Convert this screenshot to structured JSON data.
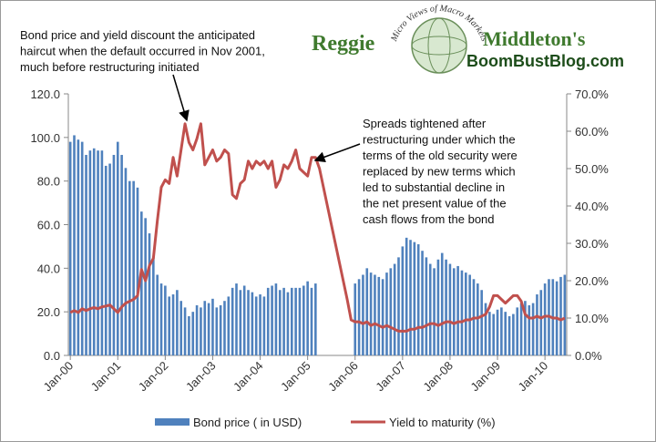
{
  "logo": {
    "left": "Reggie",
    "arc": "Micro Views of Macro Markets",
    "right": "Middleton's",
    "site": "BoomBustBlog.com"
  },
  "chart_data": {
    "type": "bar",
    "annotations": [
      [
        "Bond price and yield discount the anticipated",
        "haircut  when the default occurred in Nov 2001,",
        "much before restructuring initiated"
      ],
      [
        "Spreads tightened after",
        "restructuring  under which the",
        "terms of the old security were",
        "replaced by new terms which",
        "led to substantial decline in",
        "the net present value of the",
        "cash flows from the bond"
      ]
    ],
    "categories": [
      "Jan-00",
      null,
      null,
      null,
      null,
      null,
      null,
      null,
      null,
      null,
      null,
      null,
      "Jan-01",
      null,
      null,
      null,
      null,
      null,
      null,
      null,
      null,
      null,
      null,
      null,
      "Jan-02",
      null,
      null,
      null,
      null,
      null,
      null,
      null,
      null,
      null,
      null,
      null,
      "Jan-03",
      null,
      null,
      null,
      null,
      null,
      null,
      null,
      null,
      null,
      null,
      null,
      "Jan-04",
      null,
      null,
      null,
      null,
      null,
      null,
      null,
      null,
      null,
      null,
      null,
      "Jan-05",
      null,
      null,
      null,
      null,
      null,
      null,
      null,
      null,
      null,
      null,
      null,
      "Jan-06",
      null,
      null,
      null,
      null,
      null,
      null,
      null,
      null,
      null,
      null,
      null,
      "Jan-07",
      null,
      null,
      null,
      null,
      null,
      null,
      null,
      null,
      null,
      null,
      null,
      "Jan-08",
      null,
      null,
      null,
      null,
      null,
      null,
      null,
      null,
      null,
      null,
      null,
      "Jan-09",
      null,
      null,
      null,
      null,
      null,
      null,
      null,
      null,
      null,
      null,
      null,
      "Jan-10",
      null,
      null,
      null,
      null,
      null
    ],
    "series": [
      {
        "name": "Bond price ( in USD)",
        "type": "bar",
        "color": "#4f81bd",
        "values": [
          98,
          101,
          99,
          98,
          92,
          94,
          95,
          94,
          94,
          87,
          88,
          92,
          98,
          92,
          86,
          80,
          80,
          77,
          66,
          63,
          56,
          45,
          37,
          33,
          32,
          27,
          28,
          30,
          25,
          22,
          18,
          20,
          23,
          22,
          25,
          24,
          26,
          22,
          23,
          25,
          27,
          31,
          33,
          30,
          32,
          30,
          29,
          27,
          28,
          27,
          31,
          32,
          33,
          30,
          31,
          29,
          31,
          31,
          31,
          32,
          34,
          31,
          33,
          null,
          null,
          null,
          null,
          null,
          null,
          null,
          null,
          null,
          33,
          35,
          37,
          40,
          38,
          37,
          36,
          35,
          38,
          40,
          42,
          45,
          50,
          54,
          53,
          52,
          51,
          48,
          45,
          42,
          40,
          44,
          47,
          44,
          42,
          40,
          41,
          39,
          38,
          37,
          35,
          33,
          30,
          24,
          20,
          19,
          21,
          22,
          20,
          18,
          19,
          22,
          24,
          25,
          23,
          24,
          28,
          30,
          33,
          35,
          35,
          34,
          36,
          37
        ]
      },
      {
        "name": "Yield to maturity (%)",
        "type": "line",
        "axis": "y2",
        "color": "#c0504d",
        "values": [
          11.5,
          12,
          11.5,
          12.5,
          12,
          12.5,
          12.8,
          12.5,
          13,
          13.2,
          13.5,
          12.5,
          11.5,
          13,
          14,
          14.5,
          15,
          16,
          23,
          20,
          24,
          26,
          36,
          45,
          47,
          46,
          53,
          48,
          55,
          62,
          57,
          55,
          58,
          62,
          51,
          53,
          55,
          52,
          53,
          55,
          54,
          43,
          42,
          46,
          47,
          52,
          50,
          52,
          51,
          52,
          50,
          52,
          45,
          47,
          51,
          50,
          52,
          55,
          50,
          49,
          48,
          53,
          53,
          50,
          45,
          40,
          35,
          30,
          25,
          20,
          15,
          9.5,
          9,
          9,
          8.5,
          9,
          8,
          8.5,
          8,
          7.5,
          8,
          7.5,
          7,
          6.5,
          6.5,
          6.5,
          7,
          7,
          7.5,
          7.5,
          8,
          8.5,
          8.5,
          8,
          8.5,
          9,
          9,
          8.5,
          9,
          9,
          9.5,
          9.5,
          10,
          10,
          10.5,
          11,
          13,
          16,
          16,
          15,
          14,
          15,
          16,
          16,
          14.5,
          11,
          10,
          10,
          10.5,
          10,
          10.5,
          10.5,
          10,
          10,
          9.5,
          10
        ]
      }
    ],
    "ylim": [
      0,
      120
    ],
    "yticks": [
      {
        "value": 0,
        "label": "0.0"
      },
      {
        "value": 20,
        "label": "20.0"
      },
      {
        "value": 40,
        "label": "40.0"
      },
      {
        "value": 60,
        "label": "60.0"
      },
      {
        "value": 80,
        "label": "80.0"
      },
      {
        "value": 100,
        "label": "100.0"
      },
      {
        "value": 120,
        "label": "120.0"
      }
    ],
    "y2lim": [
      0,
      70
    ],
    "y2ticks": [
      {
        "value": 0,
        "label": "0.0%"
      },
      {
        "value": 10,
        "label": "10.0%"
      },
      {
        "value": 20,
        "label": "20.0%"
      },
      {
        "value": 30,
        "label": "30.0%"
      },
      {
        "value": 40,
        "label": "40.0%"
      },
      {
        "value": 50,
        "label": "50.0%"
      },
      {
        "value": 60,
        "label": "60.0%"
      },
      {
        "value": 70,
        "label": "70.0%"
      }
    ]
  }
}
